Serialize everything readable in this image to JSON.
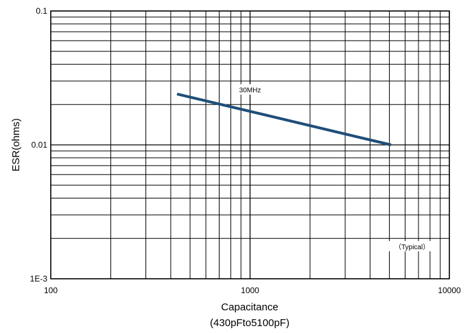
{
  "chart_data": {
    "type": "line",
    "xlabel": "Capacitance",
    "xlabel_sub": "(430pFto5100pF)",
    "ylabel": "ESR(ohms)",
    "xscale": "log",
    "yscale": "log",
    "xlim": [
      100,
      10000
    ],
    "ylim": [
      0.001,
      0.1
    ],
    "grid": true,
    "x_ticks": [
      {
        "value": 100,
        "label": "100"
      },
      {
        "value": 1000,
        "label": "1000"
      },
      {
        "value": 10000,
        "label": "10000"
      }
    ],
    "y_ticks": [
      {
        "value": 0.1,
        "label": "0.1"
      },
      {
        "value": 0.01,
        "label": "0.01"
      },
      {
        "value": 0.001,
        "label": "1E-3"
      }
    ],
    "series": [
      {
        "name": "30MHz",
        "color": "#1f4e79",
        "x": [
          430,
          5100
        ],
        "y": [
          0.024,
          0.01
        ]
      }
    ],
    "annotations": [
      {
        "text": "30MHz",
        "x": 1000,
        "y": 0.0255
      },
      {
        "text": "（Typical）",
        "x": 6500,
        "y": 0.00172
      }
    ]
  }
}
